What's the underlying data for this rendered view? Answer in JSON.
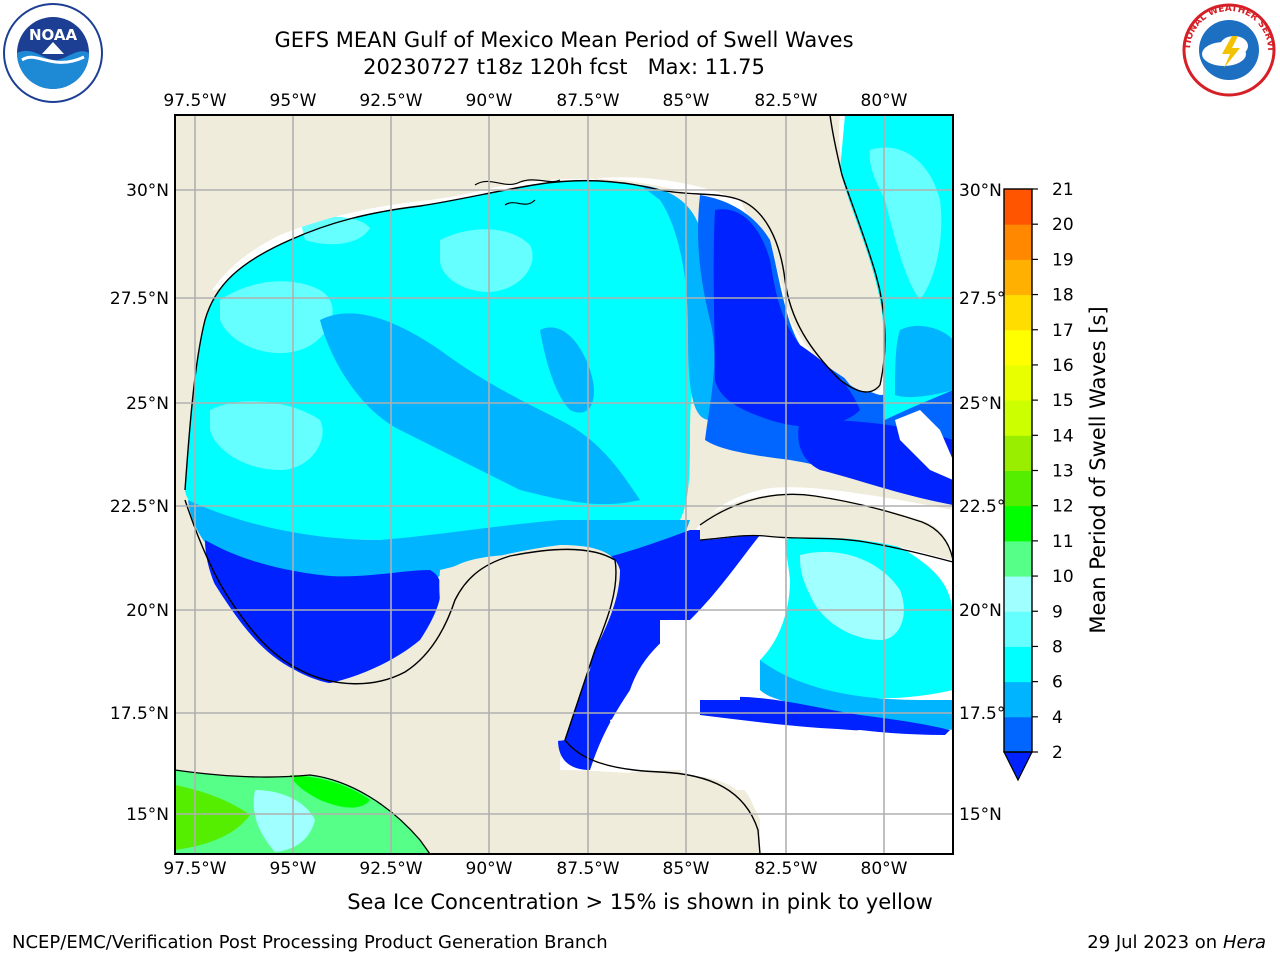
{
  "title": {
    "line1": "GEFS MEAN Gulf of Mexico Mean Period of Swell Waves",
    "line2": "20230727 t18z 120h fcst   Max: 11.75"
  },
  "logos": {
    "left": {
      "name": "NOAA",
      "ring_text": "NATIONAL OCEANIC AND ATMOSPHERIC ADMINISTRATION",
      "bottom_text": "U.S. DEPARTMENT OF COMMERCE"
    },
    "right": {
      "name": "National Weather Service",
      "ring_text": "NATIONAL WEATHER SERVICE"
    }
  },
  "map": {
    "lon_labels": [
      "97.5°W",
      "95°W",
      "92.5°W",
      "90°W",
      "87.5°W",
      "85°W",
      "82.5°W",
      "80°W"
    ],
    "lat_labels": [
      "30°N",
      "27.5°N",
      "25°N",
      "22.5°N",
      "20°N",
      "17.5°N",
      "15°N"
    ],
    "lon_range": [
      -98,
      -79
    ],
    "lat_range": [
      14,
      32
    ],
    "colors": {
      "land": "#efecdc",
      "no_data": "#ffffff",
      "grid": "#b0b0b0",
      "coast": "#000000"
    }
  },
  "colorbar": {
    "label": "Mean Period of Swell Waves [s]",
    "ticks": [
      "2",
      "4",
      "6",
      "8",
      "9",
      "10",
      "11",
      "12",
      "13",
      "14",
      "15",
      "16",
      "17",
      "18",
      "19",
      "20",
      "21"
    ],
    "colors": [
      "#0066ff",
      "#00b4ff",
      "#00ffff",
      "#66ffff",
      "#a0ffff",
      "#55ff88",
      "#00ff00",
      "#55ee00",
      "#99ee00",
      "#ccff00",
      "#e8ff00",
      "#ffff00",
      "#ffdd00",
      "#ffb000",
      "#ff8800",
      "#ff5500",
      "#ff2a00",
      "#ff0000"
    ],
    "extend_color": "#0022ff"
  },
  "footer": {
    "note": "Sea Ice Concentration > 15% is shown in pink to yellow",
    "credit": "NCEP/EMC/Verification Post Processing Product Generation Branch",
    "date": "29 Jul 2023 on ",
    "host": "Hera"
  }
}
